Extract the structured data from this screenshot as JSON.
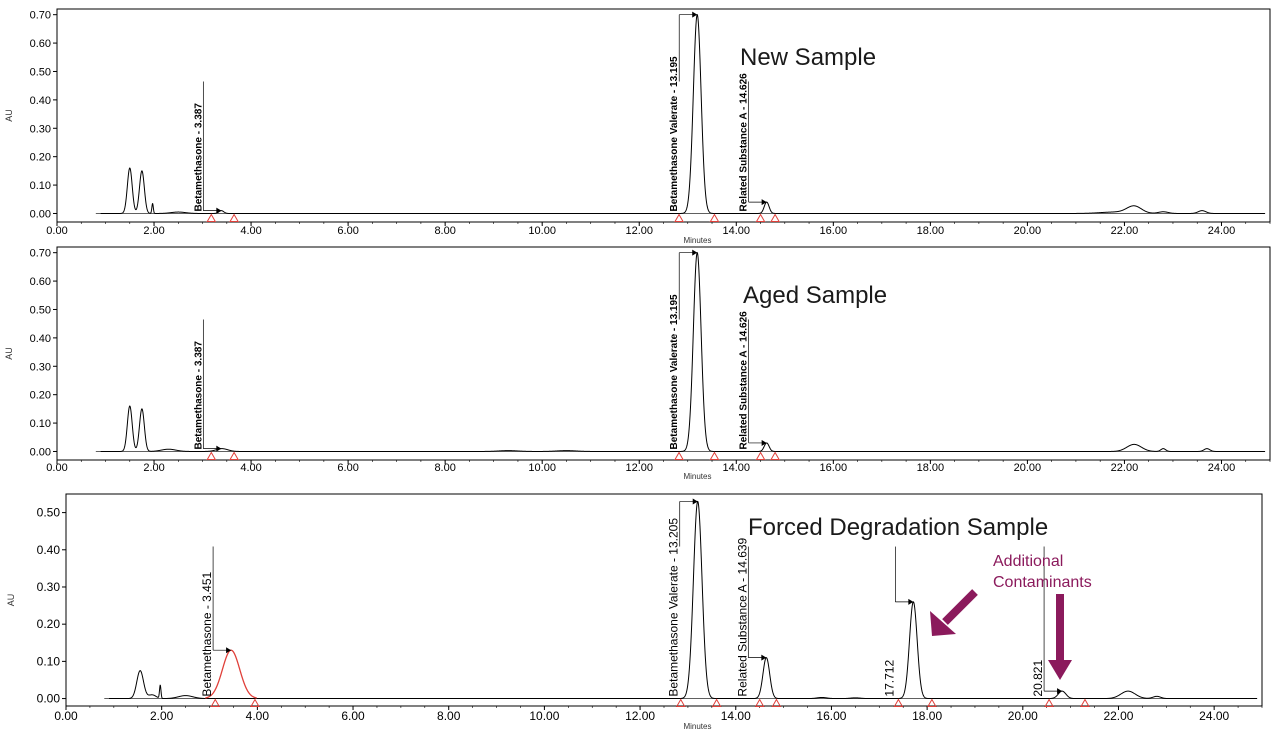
{
  "chart_data": [
    {
      "type": "line",
      "title": "New Sample",
      "xlabel": "Minutes",
      "ylabel": "AU",
      "xlim": [
        0,
        25
      ],
      "ylim": [
        -0.03,
        0.72
      ],
      "x_ticks": [
        "0.00",
        "2.00",
        "4.00",
        "6.00",
        "8.00",
        "10.00",
        "12.00",
        "14.00",
        "16.00",
        "18.00",
        "20.00",
        "22.00",
        "24.00"
      ],
      "y_ticks": [
        "0.00",
        "0.10",
        "0.20",
        "0.30",
        "0.40",
        "0.50",
        "0.60",
        "0.70"
      ],
      "peaks": [
        {
          "t": 1.5,
          "h": 0.16,
          "w": 0.05
        },
        {
          "t": 1.75,
          "h": 0.15,
          "w": 0.05
        },
        {
          "t": 1.97,
          "h": 0.035,
          "w": 0.015
        },
        {
          "t": 2.5,
          "h": 0.005,
          "w": 0.15
        },
        {
          "t": 3.387,
          "h": 0.01,
          "w": 0.05
        },
        {
          "t": 13.195,
          "h": 0.7,
          "w": 0.08
        },
        {
          "t": 14.626,
          "h": 0.04,
          "w": 0.05
        },
        {
          "t": 21.8,
          "h": 0.005,
          "w": 0.3
        },
        {
          "t": 22.2,
          "h": 0.025,
          "w": 0.15
        },
        {
          "t": 22.8,
          "h": 0.006,
          "w": 0.1
        },
        {
          "t": 23.6,
          "h": 0.01,
          "w": 0.08
        }
      ],
      "red_peaks": [],
      "labels": [
        {
          "text": "Betamethasone - 3.387",
          "t": 3.387,
          "bracket_y": 0.01
        },
        {
          "text": "Betamethasone Valerate - 13.195",
          "t": 13.195,
          "bracket_y": 0.7
        },
        {
          "text": "Related Substance A - 14.626",
          "t": 14.626,
          "bracket_y": 0.04
        }
      ],
      "markers": [
        3.18,
        3.65,
        12.82,
        13.55,
        14.5,
        14.8
      ]
    },
    {
      "type": "line",
      "title": "Aged Sample",
      "xlabel": "Minutes",
      "ylabel": "AU",
      "xlim": [
        0,
        25
      ],
      "ylim": [
        -0.03,
        0.72
      ],
      "x_ticks": [
        "0.00",
        "2.00",
        "4.00",
        "6.00",
        "8.00",
        "10.00",
        "12.00",
        "14.00",
        "16.00",
        "18.00",
        "20.00",
        "22.00",
        "24.00"
      ],
      "y_ticks": [
        "0.00",
        "0.10",
        "0.20",
        "0.30",
        "0.40",
        "0.50",
        "0.60",
        "0.70"
      ],
      "peaks": [
        {
          "t": 1.5,
          "h": 0.16,
          "w": 0.05
        },
        {
          "t": 1.75,
          "h": 0.15,
          "w": 0.05
        },
        {
          "t": 2.3,
          "h": 0.008,
          "w": 0.15
        },
        {
          "t": 3.4,
          "h": 0.01,
          "w": 0.12
        },
        {
          "t": 9.3,
          "h": 0.003,
          "w": 0.2
        },
        {
          "t": 10.5,
          "h": 0.003,
          "w": 0.2
        },
        {
          "t": 13.195,
          "h": 0.7,
          "w": 0.08
        },
        {
          "t": 14.626,
          "h": 0.03,
          "w": 0.05
        },
        {
          "t": 22.2,
          "h": 0.025,
          "w": 0.15
        },
        {
          "t": 22.8,
          "h": 0.01,
          "w": 0.05
        },
        {
          "t": 23.7,
          "h": 0.01,
          "w": 0.06
        }
      ],
      "red_peaks": [],
      "labels": [
        {
          "text": "Betamethasone - 3.387",
          "t": 3.387,
          "bracket_y": 0.01
        },
        {
          "text": "Betamethasone Valerate - 13.195",
          "t": 13.195,
          "bracket_y": 0.7
        },
        {
          "text": "Related Substance A - 14.626",
          "t": 14.626,
          "bracket_y": 0.03
        }
      ],
      "markers": [
        3.18,
        3.65,
        12.82,
        13.55,
        14.5,
        14.8
      ]
    },
    {
      "type": "line",
      "title": "Forced Degradation Sample",
      "xlabel": "Minutes",
      "ylabel": "AU",
      "xlim": [
        0,
        25
      ],
      "ylim": [
        -0.02,
        0.55
      ],
      "x_ticks": [
        "0.00",
        "2.00",
        "4.00",
        "6.00",
        "8.00",
        "10.00",
        "12.00",
        "14.00",
        "16.00",
        "18.00",
        "20.00",
        "22.00",
        "24.00"
      ],
      "y_ticks": [
        "0.00",
        "0.10",
        "0.20",
        "0.30",
        "0.40",
        "0.50"
      ],
      "peaks": [
        {
          "t": 1.55,
          "h": 0.075,
          "w": 0.07
        },
        {
          "t": 1.8,
          "h": 0.01,
          "w": 0.08
        },
        {
          "t": 1.97,
          "h": 0.035,
          "w": 0.015
        },
        {
          "t": 2.5,
          "h": 0.008,
          "w": 0.15
        },
        {
          "t": 13.205,
          "h": 0.53,
          "w": 0.09
        },
        {
          "t": 14.639,
          "h": 0.11,
          "w": 0.07
        },
        {
          "t": 15.8,
          "h": 0.003,
          "w": 0.1
        },
        {
          "t": 16.5,
          "h": 0.002,
          "w": 0.1
        },
        {
          "t": 17.712,
          "h": 0.26,
          "w": 0.08
        },
        {
          "t": 20.821,
          "h": 0.02,
          "w": 0.08
        },
        {
          "t": 22.2,
          "h": 0.02,
          "w": 0.15
        },
        {
          "t": 22.8,
          "h": 0.006,
          "w": 0.08
        }
      ],
      "red_peaks": [
        {
          "t": 3.451,
          "h": 0.13,
          "w": 0.18
        }
      ],
      "labels": [
        {
          "text": "Betamethasone - 3.451",
          "t": 3.451,
          "bracket_y": 0.13
        },
        {
          "text": "Betamethasone Valerate - 13.205",
          "t": 13.205,
          "bracket_y": 0.53
        },
        {
          "text": "Related Substance A - 14.639",
          "t": 14.639,
          "bracket_y": 0.11
        },
        {
          "text": "17.712",
          "t": 17.712,
          "bracket_y": 0.26
        },
        {
          "text": "20.821",
          "t": 20.821,
          "bracket_y": 0.02
        }
      ],
      "markers": [
        3.12,
        3.95,
        12.85,
        13.6,
        14.5,
        14.85,
        17.4,
        18.1,
        20.55,
        21.3
      ],
      "annotation": {
        "line1": "Additional",
        "line2": "Contaminants",
        "color": "#8b1a5c"
      }
    }
  ]
}
